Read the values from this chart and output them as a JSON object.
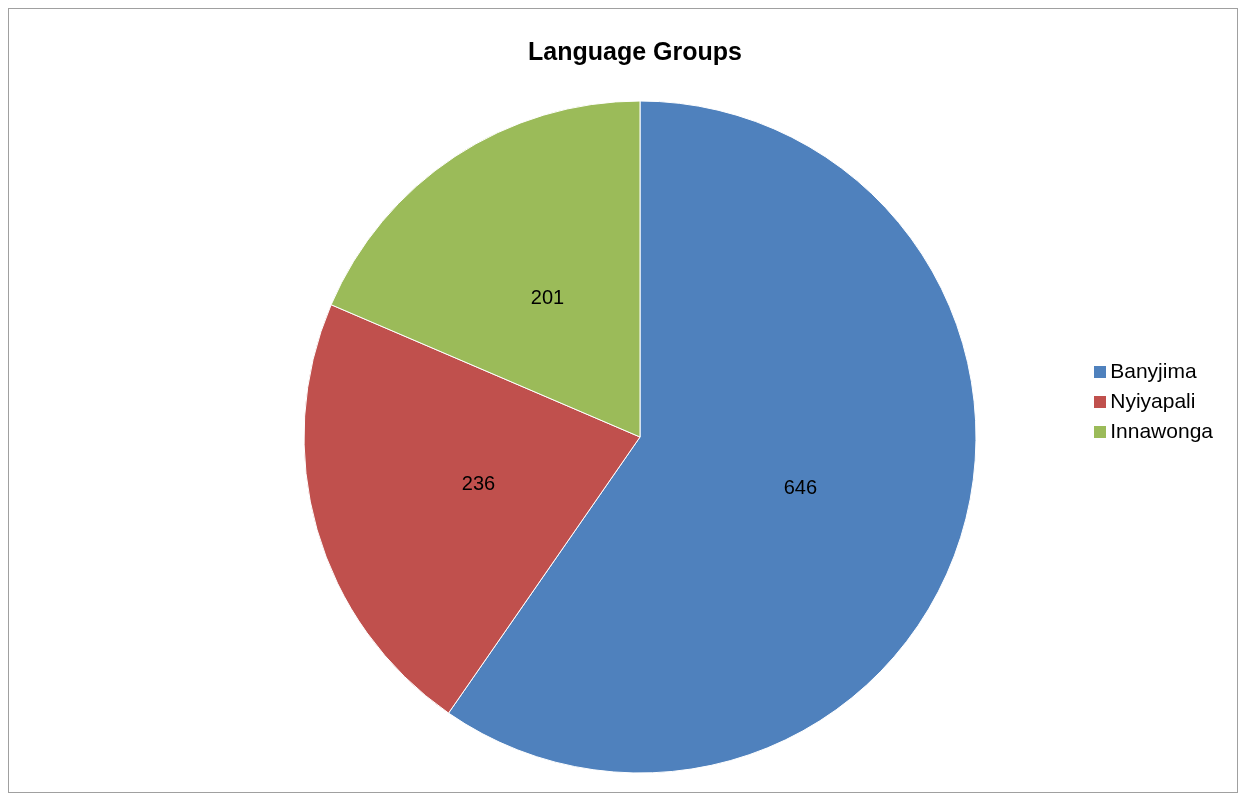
{
  "chart_data": {
    "type": "pie",
    "title": "Language Groups",
    "categories": [
      "Banyjima",
      "Nyiyapali",
      "Innawonga"
    ],
    "values": [
      646,
      236,
      201
    ],
    "colors": [
      "#4f81bd",
      "#c0504d",
      "#9bbb59"
    ],
    "data_labels": true,
    "legend": "right"
  }
}
